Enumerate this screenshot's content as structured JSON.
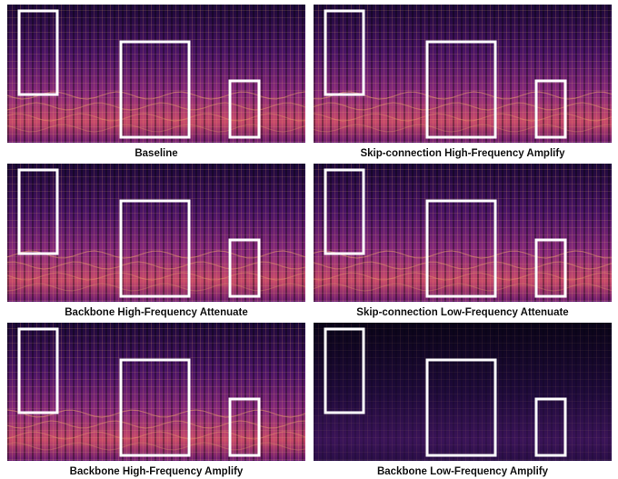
{
  "panels": [
    {
      "caption": "Baseline"
    },
    {
      "caption": "Skip-connection High-Frequency Amplify"
    },
    {
      "caption": "Backbone High-Frequency Attenuate"
    },
    {
      "caption": "Skip-connection Low-Frequency Attenuate"
    },
    {
      "caption": "Backbone High-Frequency Amplify"
    },
    {
      "caption": "Backbone Low-Frequency Amplify"
    }
  ]
}
